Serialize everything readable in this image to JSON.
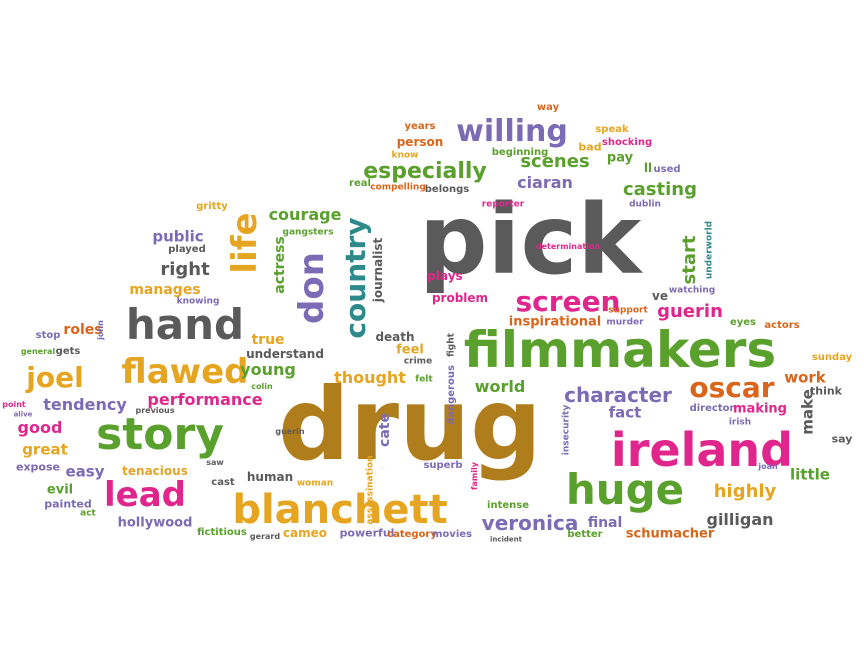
{
  "palette": {
    "gray": "#5a5a5a",
    "brown": "#b07d1c",
    "green": "#5aa02c",
    "pink": "#e0268c",
    "purple": "#7b6bb5",
    "gold": "#e6a520",
    "teal": "#2e8a8a",
    "orange": "#d9651a",
    "blue": "#5a7fb5"
  },
  "words": [
    {
      "text": "pick",
      "color": "gray",
      "vertical": false
    },
    {
      "text": "drug",
      "color": "brown",
      "vertical": false
    },
    {
      "text": "filmmakers",
      "color": "green",
      "vertical": false
    },
    {
      "text": "ireland",
      "color": "pink",
      "vertical": false
    },
    {
      "text": "blanchett",
      "color": "gold",
      "vertical": false
    },
    {
      "text": "story",
      "color": "green",
      "vertical": false
    },
    {
      "text": "hand",
      "color": "gray",
      "vertical": false
    },
    {
      "text": "huge",
      "color": "green",
      "vertical": false
    },
    {
      "text": "lead",
      "color": "pink",
      "vertical": false
    },
    {
      "text": "flawed",
      "color": "gold",
      "vertical": false
    },
    {
      "text": "willing",
      "color": "purple",
      "vertical": false
    },
    {
      "text": "screen",
      "color": "pink",
      "vertical": false
    },
    {
      "text": "oscar",
      "color": "orange",
      "vertical": false
    },
    {
      "text": "life",
      "color": "gold",
      "vertical": true
    },
    {
      "text": "don",
      "color": "purple",
      "vertical": true
    },
    {
      "text": "country",
      "color": "teal",
      "vertical": true
    },
    {
      "text": "joel",
      "color": "gold",
      "vertical": false
    },
    {
      "text": "especially",
      "color": "green",
      "vertical": false
    },
    {
      "text": "character",
      "color": "purple",
      "vertical": false
    },
    {
      "text": "veronica",
      "color": "purple",
      "vertical": false
    },
    {
      "text": "scenes",
      "color": "green",
      "vertical": false
    },
    {
      "text": "casting",
      "color": "green",
      "vertical": false
    },
    {
      "text": "guerin",
      "color": "pink",
      "vertical": false
    },
    {
      "text": "highly",
      "color": "gold",
      "vertical": false
    },
    {
      "text": "courage",
      "color": "green",
      "vertical": false
    },
    {
      "text": "right",
      "color": "gray",
      "vertical": false
    },
    {
      "text": "thought",
      "color": "gold",
      "vertical": false
    },
    {
      "text": "performance",
      "color": "pink",
      "vertical": false
    },
    {
      "text": "tendency",
      "color": "purple",
      "vertical": false
    },
    {
      "text": "good",
      "color": "pink",
      "vertical": false
    },
    {
      "text": "great",
      "color": "gold",
      "vertical": false
    },
    {
      "text": "easy",
      "color": "purple",
      "vertical": false
    },
    {
      "text": "young",
      "color": "green",
      "vertical": false
    },
    {
      "text": "ciaran",
      "color": "purple",
      "vertical": false
    },
    {
      "text": "start",
      "color": "green",
      "vertical": true
    },
    {
      "text": "gilligan",
      "color": "gray",
      "vertical": false
    },
    {
      "text": "world",
      "color": "green",
      "vertical": false
    },
    {
      "text": "fact",
      "color": "purple",
      "vertical": false
    },
    {
      "text": "work",
      "color": "orange",
      "vertical": false
    },
    {
      "text": "make",
      "color": "gray",
      "vertical": true
    },
    {
      "text": "little",
      "color": "green",
      "vertical": false
    },
    {
      "text": "public",
      "color": "purple",
      "vertical": false
    },
    {
      "text": "manages",
      "color": "gold",
      "vertical": false
    },
    {
      "text": "roles",
      "color": "orange",
      "vertical": false
    },
    {
      "text": "actress",
      "color": "green",
      "vertical": true
    },
    {
      "text": "journalist",
      "color": "gray",
      "vertical": true
    },
    {
      "text": "true",
      "color": "gold",
      "vertical": false
    },
    {
      "text": "understand",
      "color": "gray",
      "vertical": false
    },
    {
      "text": "feel",
      "color": "gold",
      "vertical": false
    },
    {
      "text": "death",
      "color": "gray",
      "vertical": false
    },
    {
      "text": "inspirational",
      "color": "orange",
      "vertical": false
    },
    {
      "text": "problem",
      "color": "pink",
      "vertical": false
    },
    {
      "text": "plays",
      "color": "pink",
      "vertical": false
    },
    {
      "text": "cate",
      "color": "purple",
      "vertical": true
    },
    {
      "text": "final",
      "color": "purple",
      "vertical": false
    },
    {
      "text": "making",
      "color": "pink",
      "vertical": false
    },
    {
      "text": "schumacher",
      "color": "orange",
      "vertical": false
    },
    {
      "text": "hollywood",
      "color": "purple",
      "vertical": false
    },
    {
      "text": "tenacious",
      "color": "gold",
      "vertical": false
    },
    {
      "text": "human",
      "color": "gray",
      "vertical": false
    },
    {
      "text": "cameo",
      "color": "gold",
      "vertical": false
    },
    {
      "text": "evil",
      "color": "green",
      "vertical": false
    },
    {
      "text": "painted",
      "color": "purple",
      "vertical": false
    },
    {
      "text": "expose",
      "color": "purple",
      "vertical": false
    },
    {
      "text": "fictitious",
      "color": "green",
      "vertical": false
    },
    {
      "text": "powerful",
      "color": "purple",
      "vertical": false
    },
    {
      "text": "category",
      "color": "orange",
      "vertical": false
    },
    {
      "text": "movies",
      "color": "purple",
      "vertical": false
    },
    {
      "text": "better",
      "color": "green",
      "vertical": false
    },
    {
      "text": "pay",
      "color": "green",
      "vertical": false
    },
    {
      "text": "ll",
      "color": "green",
      "vertical": false
    },
    {
      "text": "used",
      "color": "purple",
      "vertical": false
    },
    {
      "text": "person",
      "color": "orange",
      "vertical": false
    },
    {
      "text": "years",
      "color": "orange",
      "vertical": false
    },
    {
      "text": "bad",
      "color": "gold",
      "vertical": false
    },
    {
      "text": "speak",
      "color": "gold",
      "vertical": false
    },
    {
      "text": "shocking",
      "color": "pink",
      "vertical": false
    },
    {
      "text": "way",
      "color": "orange",
      "vertical": false
    },
    {
      "text": "know",
      "color": "gold",
      "vertical": false
    },
    {
      "text": "beginning",
      "color": "green",
      "vertical": false
    },
    {
      "text": "real",
      "color": "green",
      "vertical": false
    },
    {
      "text": "compelling",
      "color": "orange",
      "vertical": false
    },
    {
      "text": "belongs",
      "color": "gray",
      "vertical": false
    },
    {
      "text": "gritty",
      "color": "gold",
      "vertical": false
    },
    {
      "text": "played",
      "color": "gray",
      "vertical": false
    },
    {
      "text": "gangsters",
      "color": "green",
      "vertical": false
    },
    {
      "text": "reporter",
      "color": "pink",
      "vertical": false
    },
    {
      "text": "dublin",
      "color": "purple",
      "vertical": false
    },
    {
      "text": "determination",
      "color": "pink",
      "vertical": false
    },
    {
      "text": "underworld",
      "color": "teal",
      "vertical": true
    },
    {
      "text": "knowing",
      "color": "purple",
      "vertical": false
    },
    {
      "text": "ve",
      "color": "gray",
      "vertical": false
    },
    {
      "text": "watching",
      "color": "purple",
      "vertical": false
    },
    {
      "text": "support",
      "color": "orange",
      "vertical": false
    },
    {
      "text": "murder",
      "color": "purple",
      "vertical": false
    },
    {
      "text": "eyes",
      "color": "green",
      "vertical": false
    },
    {
      "text": "actors",
      "color": "orange",
      "vertical": false
    },
    {
      "text": "sunday",
      "color": "gold",
      "vertical": false
    },
    {
      "text": "think",
      "color": "gray",
      "vertical": false
    },
    {
      "text": "say",
      "color": "gray",
      "vertical": false
    },
    {
      "text": "stop",
      "color": "purple",
      "vertical": false
    },
    {
      "text": "general",
      "color": "green",
      "vertical": false
    },
    {
      "text": "gets",
      "color": "gray",
      "vertical": false
    },
    {
      "text": "point",
      "color": "pink",
      "vertical": false
    },
    {
      "text": "alive",
      "color": "purple",
      "vertical": false
    },
    {
      "text": "previous",
      "color": "gray",
      "vertical": false
    },
    {
      "text": "colin",
      "color": "green",
      "vertical": false
    },
    {
      "text": "felt",
      "color": "green",
      "vertical": false
    },
    {
      "text": "crime",
      "color": "gray",
      "vertical": false
    },
    {
      "text": "dangerous",
      "color": "purple",
      "vertical": true
    },
    {
      "text": "fight",
      "color": "gray",
      "vertical": true
    },
    {
      "text": "john",
      "color": "purple",
      "vertical": true
    },
    {
      "text": "insecurity",
      "color": "purple",
      "vertical": true
    },
    {
      "text": "assassination",
      "color": "gold",
      "vertical": true
    },
    {
      "text": "family",
      "color": "pink",
      "vertical": true
    },
    {
      "text": "irish",
      "color": "purple",
      "vertical": false
    },
    {
      "text": "director",
      "color": "purple",
      "vertical": false
    },
    {
      "text": "joan",
      "color": "purple",
      "vertical": false
    },
    {
      "text": "superb",
      "color": "purple",
      "vertical": false
    },
    {
      "text": "intense",
      "color": "green",
      "vertical": false
    },
    {
      "text": "incident",
      "color": "gray",
      "vertical": false
    },
    {
      "text": "woman",
      "color": "gold",
      "vertical": false
    },
    {
      "text": "cast",
      "color": "gray",
      "vertical": false
    },
    {
      "text": "saw",
      "color": "gray",
      "vertical": false
    },
    {
      "text": "act",
      "color": "green",
      "vertical": false
    },
    {
      "text": "gerard",
      "color": "gray",
      "vertical": false
    },
    {
      "text": "guerin",
      "color": "gray",
      "vertical": false
    }
  ]
}
